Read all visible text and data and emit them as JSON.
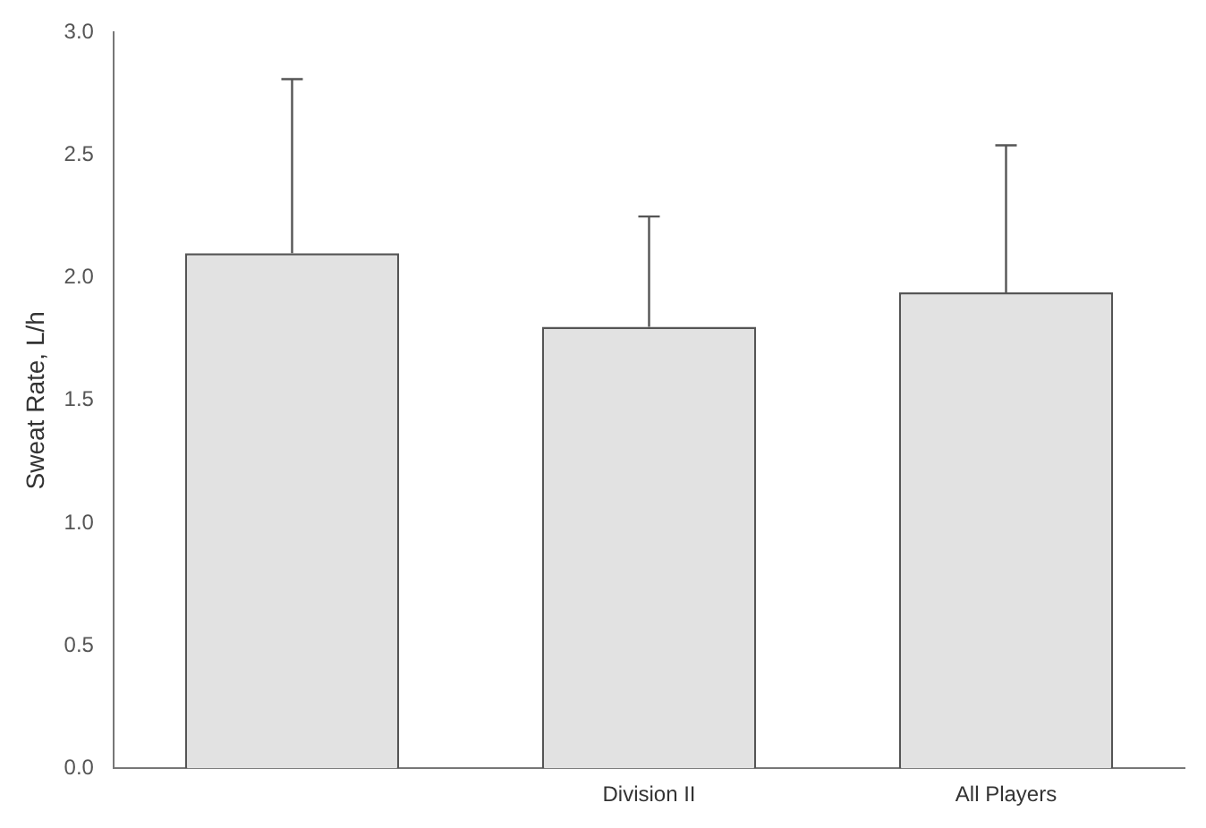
{
  "chart_data": {
    "type": "bar",
    "ylabel": "Sweat Rate, L/h",
    "categories": [
      null,
      "Division II",
      "All Players"
    ],
    "values": [
      2.1,
      1.8,
      1.94
    ],
    "errors": [
      [
        2.1,
        2.81
      ],
      [
        1.8,
        2.25
      ],
      [
        1.94,
        2.54
      ]
    ],
    "color": "#e2e2e2",
    "ylim": [
      0,
      3
    ],
    "yticks": [
      {
        "value": 0,
        "label": "0.0"
      },
      {
        "value": 0.5,
        "label": "0.5"
      },
      {
        "value": 1,
        "label": "1.0"
      },
      {
        "value": 1.5,
        "label": "1.5"
      },
      {
        "value": 2,
        "label": "2.0"
      },
      {
        "value": 2.5,
        "label": "2.5"
      },
      {
        "value": 3,
        "label": "3.0"
      }
    ],
    "grid": false,
    "legend": false
  }
}
